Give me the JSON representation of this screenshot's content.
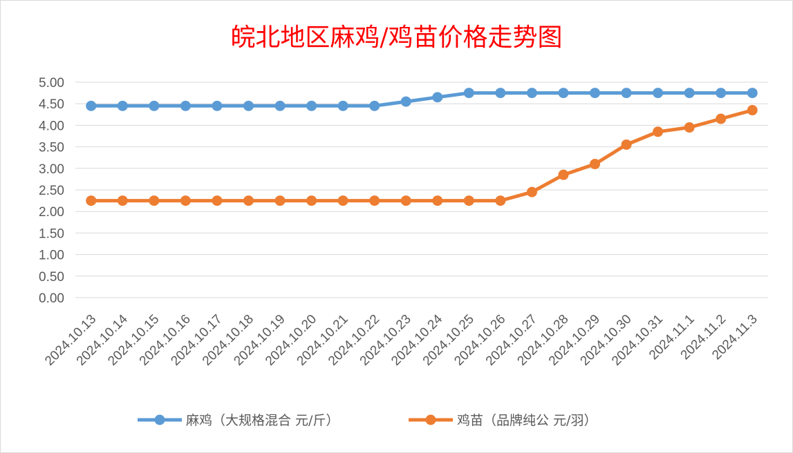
{
  "chart_data": {
    "type": "line",
    "title": "皖北地区麻鸡/鸡苗价格走势图",
    "categories": [
      "2024.10.13",
      "2024.10.14",
      "2024.10.15",
      "2024.10.16",
      "2024.10.17",
      "2024.10.18",
      "2024.10.19",
      "2024.10.20",
      "2024.10.21",
      "2024.10.22",
      "2024.10.23",
      "2024.10.24",
      "2024.10.25",
      "2024.10.26",
      "2024.10.27",
      "2024.10.28",
      "2024.10.29",
      "2024.10.30",
      "2024.10.31",
      "2024.11.1",
      "2024.11.2",
      "2024.11.3"
    ],
    "series": [
      {
        "name": "麻鸡（大规格混合 元/斤）",
        "color": "#5b9bd5",
        "values": [
          4.45,
          4.45,
          4.45,
          4.45,
          4.45,
          4.45,
          4.45,
          4.45,
          4.45,
          4.45,
          4.55,
          4.65,
          4.75,
          4.75,
          4.75,
          4.75,
          4.75,
          4.75,
          4.75,
          4.75,
          4.75,
          4.75
        ]
      },
      {
        "name": "鸡苗（品牌纯公 元/羽）",
        "color": "#ed7d31",
        "values": [
          2.25,
          2.25,
          2.25,
          2.25,
          2.25,
          2.25,
          2.25,
          2.25,
          2.25,
          2.25,
          2.25,
          2.25,
          2.25,
          2.25,
          2.45,
          2.85,
          3.1,
          3.55,
          3.85,
          3.95,
          4.15,
          4.35
        ]
      }
    ],
    "yticks": [
      "0.00",
      "0.50",
      "1.00",
      "1.50",
      "2.00",
      "2.50",
      "3.00",
      "3.50",
      "4.00",
      "4.50",
      "5.00"
    ],
    "ylim": [
      0,
      5
    ],
    "grid": true,
    "legend_position": "bottom"
  }
}
